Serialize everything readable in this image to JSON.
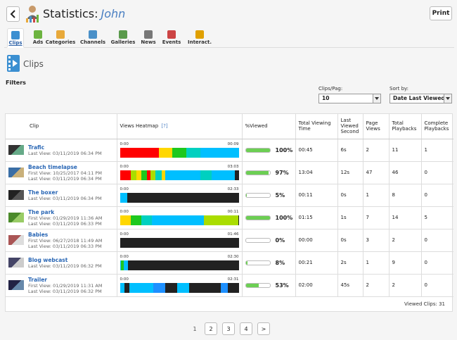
{
  "header": {
    "title": "Statistics:",
    "user": "John",
    "print_label": "Print"
  },
  "tabs": [
    {
      "label": "Clips",
      "color": "#3b8fd1"
    },
    {
      "label": "Ads",
      "color": "#6cb33f"
    },
    {
      "label": "Categories",
      "color": "#e8a93a"
    },
    {
      "label": "Channels",
      "color": "#4a90c8"
    },
    {
      "label": "Galleries",
      "color": "#5a9a4b"
    },
    {
      "label": "News",
      "color": "#777777"
    },
    {
      "label": "Events",
      "color": "#cc4444"
    },
    {
      "label": "Interact.",
      "color": "#e0a000"
    }
  ],
  "section": {
    "title": "Clips"
  },
  "filters": {
    "label": "Filters",
    "clips_per_page_label": "Clips/Pag:",
    "clips_per_page_value": "10",
    "sort_label": "Sort by:",
    "sort_value": "Date Last Viewed"
  },
  "table": {
    "headers": [
      "Clip",
      "Views Heatmap",
      "[?]",
      "%Viewed",
      "Total Viewing Time",
      "Last Viewed Second",
      "Page Views",
      "Total Playbacks",
      "Complete Playbacks"
    ],
    "rows": [
      {
        "name": "Trafic",
        "dates": [
          "Last View: 03/11/2019 06:34 PM"
        ],
        "start": "0:00",
        "end": "00:09",
        "heat": [
          [
            "#ff0000",
            0.33
          ],
          [
            "#ffd700",
            0.11
          ],
          [
            "#1ec81e",
            0.12
          ],
          [
            "#00d0c0",
            0.12
          ],
          [
            "#00bfff",
            0.32
          ]
        ],
        "pct": 100,
        "pct_label": "100%",
        "time": "00:45",
        "last": "6s",
        "pv": "2",
        "tp": "11",
        "cp": "1"
      },
      {
        "name": "Beach timelapse",
        "dates": [
          "First View: 10/25/2017 04:11 PM",
          "Last View: 03/11/2019 06:34 PM"
        ],
        "start": "0:00",
        "end": "03:03",
        "heat": [
          [
            "#ff0000",
            0.09
          ],
          [
            "#aadd00",
            0.05
          ],
          [
            "#ffd700",
            0.04
          ],
          [
            "#1ec81e",
            0.05
          ],
          [
            "#ff0000",
            0.03
          ],
          [
            "#aadd00",
            0.04
          ],
          [
            "#00d0c0",
            0.05
          ],
          [
            "#ffd700",
            0.03
          ],
          [
            "#00bfff",
            0.3
          ],
          [
            "#00d0c0",
            0.09
          ],
          [
            "#00bfff",
            0.2
          ],
          [
            "#222222",
            0.03
          ]
        ],
        "pct": 97,
        "pct_label": "97%",
        "time": "13:04",
        "last": "12s",
        "pv": "47",
        "tp": "46",
        "cp": "0"
      },
      {
        "name": "The boxer",
        "dates": [
          "Last View: 03/11/2019 06:34 PM"
        ],
        "start": "0:00",
        "end": "02:33",
        "heat": [
          [
            "#00bfff",
            0.06
          ],
          [
            "#222222",
            0.94
          ]
        ],
        "pct": 5,
        "pct_label": "5%",
        "time": "00:11",
        "last": "0s",
        "pv": "1",
        "tp": "8",
        "cp": "0"
      },
      {
        "name": "The park",
        "dates": [
          "First View: 01/29/2019 11:36 AM",
          "Last View: 03/11/2019 06:33 PM"
        ],
        "start": "0:00",
        "end": "00:11",
        "heat": [
          [
            "#ffd700",
            0.09
          ],
          [
            "#1ec81e",
            0.09
          ],
          [
            "#00d0c0",
            0.09
          ],
          [
            "#00bfff",
            0.44
          ],
          [
            "#aadd00",
            0.29
          ]
        ],
        "pct": 100,
        "pct_label": "100%",
        "time": "01:15",
        "last": "1s",
        "pv": "7",
        "tp": "14",
        "cp": "5"
      },
      {
        "name": "Babies",
        "dates": [
          "First View: 06/27/2018 11:49 AM",
          "Last View: 03/11/2019 06:33 PM"
        ],
        "start": "0:00",
        "end": "01:46",
        "heat": [
          [
            "#222222",
            1
          ]
        ],
        "pct": 0,
        "pct_label": "0%",
        "time": "00:00",
        "last": "0s",
        "pv": "3",
        "tp": "2",
        "cp": "0"
      },
      {
        "name": "Blog webcast",
        "dates": [
          "Last View: 03/11/2019 06:32 PM"
        ],
        "start": "0:00",
        "end": "02:30",
        "heat": [
          [
            "#00bfff",
            0.01
          ],
          [
            "#1ec81e",
            0.02
          ],
          [
            "#00bfff",
            0.04
          ],
          [
            "#222222",
            0.93
          ]
        ],
        "pct": 8,
        "pct_label": "8%",
        "time": "00:21",
        "last": "2s",
        "pv": "1",
        "tp": "9",
        "cp": "0"
      },
      {
        "name": "Trailer",
        "dates": [
          "First View: 01/29/2019 11:31 AM",
          "Last View: 03/11/2019 06:32 PM"
        ],
        "start": "0:00",
        "end": "02:31",
        "heat": [
          [
            "#00bfff",
            0.04
          ],
          [
            "#222222",
            0.04
          ],
          [
            "#00bfff",
            0.2
          ],
          [
            "#1e90ff",
            0.1
          ],
          [
            "#222222",
            0.1
          ],
          [
            "#00bfff",
            0.1
          ],
          [
            "#222222",
            0.27
          ],
          [
            "#1e90ff",
            0.06
          ],
          [
            "#222222",
            0.09
          ]
        ],
        "pct": 53,
        "pct_label": "53%",
        "time": "02:00",
        "last": "45s",
        "pv": "2",
        "tp": "2",
        "cp": "0"
      }
    ],
    "footer": "Viewed Clips: 31"
  },
  "pager": {
    "current": "1",
    "pages": [
      "2",
      "3",
      "4"
    ],
    "next": ">"
  }
}
